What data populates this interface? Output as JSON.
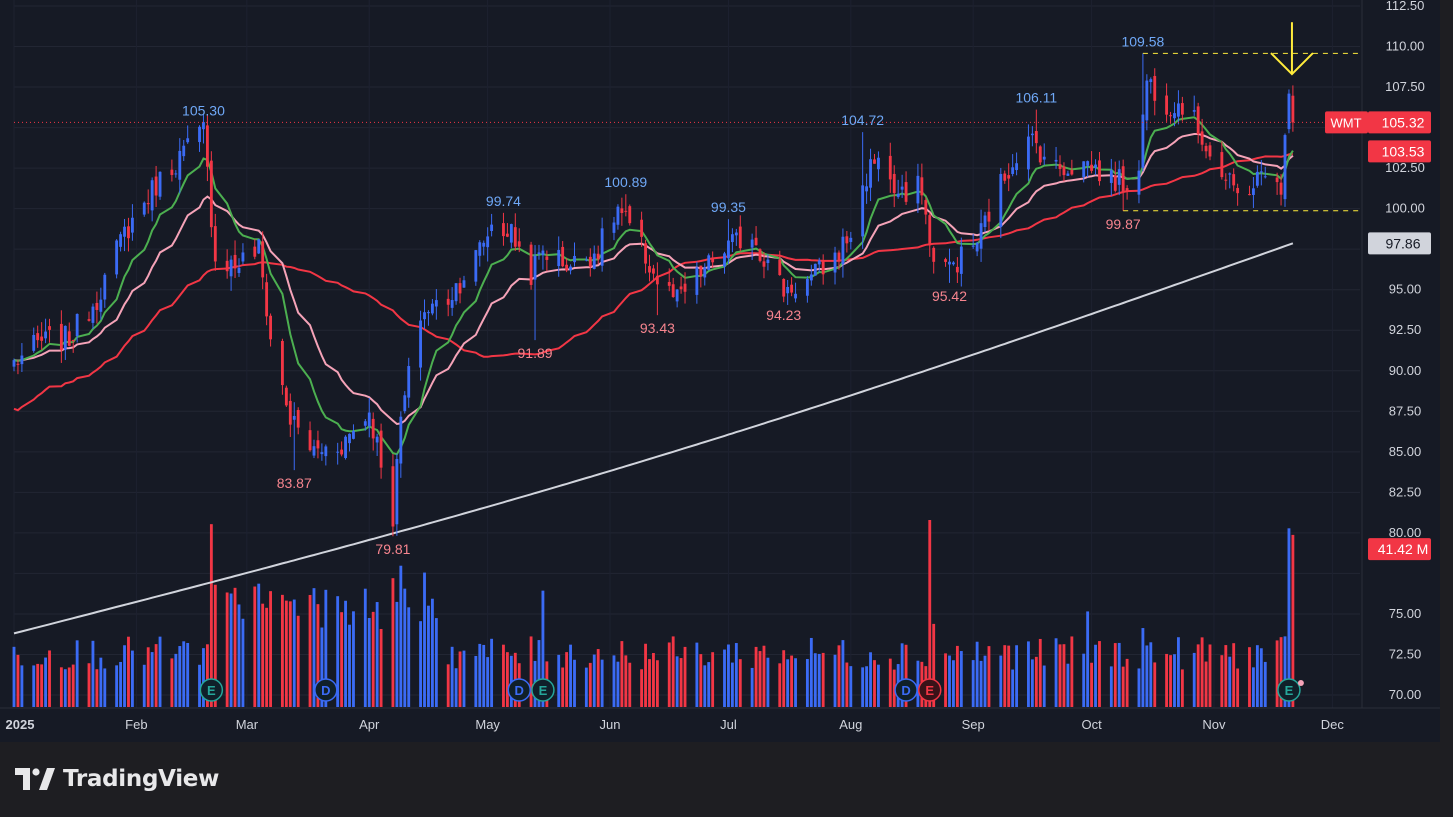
{
  "symbol": "WMT",
  "brand": {
    "name": "TradingView",
    "icon": "tradingview-logo-icon"
  },
  "colors": {
    "background": "#161a25",
    "up": "#3b6bf5",
    "down": "#f23645",
    "ema_fast": "#4caf50",
    "ema_mid": "#f5a3b8",
    "sma_50": "#f23645",
    "sma_200": "#d1d4dc",
    "arrow": "#ffeb3b",
    "dashed": "#ffeb3b",
    "text": "#d1d4dc"
  },
  "chart_data": {
    "type": "candlestick",
    "title": "",
    "ylim": [
      70,
      112.5
    ],
    "yticks": [
      70,
      72.5,
      75,
      77.5,
      80,
      82.5,
      85,
      87.5,
      90,
      92.5,
      95,
      97.5,
      100,
      102.5,
      105,
      107.5,
      110,
      112.5
    ],
    "ytick_labels": [
      "70.00",
      "72.50",
      "75.00",
      "",
      "80.00",
      "82.50",
      "85.00",
      "87.50",
      "90.00",
      "92.50",
      "95.00",
      "",
      "100.00",
      "102.50",
      "",
      "107.50",
      "110.00",
      "112.50"
    ],
    "xlim": [
      "2025-01-01",
      "2025-12-08"
    ],
    "xticks": [
      {
        "date": "2025-01-01",
        "label": "2025"
      },
      {
        "date": "2025-02-01",
        "label": "Feb"
      },
      {
        "date": "2025-03-01",
        "label": "Mar"
      },
      {
        "date": "2025-04-01",
        "label": "Apr"
      },
      {
        "date": "2025-05-01",
        "label": "May"
      },
      {
        "date": "2025-06-01",
        "label": "Jun"
      },
      {
        "date": "2025-07-01",
        "label": "Jul"
      },
      {
        "date": "2025-08-01",
        "label": "Aug"
      },
      {
        "date": "2025-09-01",
        "label": "Sep"
      },
      {
        "date": "2025-10-01",
        "label": "Oct"
      },
      {
        "date": "2025-11-01",
        "label": "Nov"
      },
      {
        "date": "2025-12-01",
        "label": "Dec"
      }
    ],
    "price_anchors": [
      [
        "2025-01-01",
        90.5
      ],
      [
        "2025-01-08",
        91.8
      ],
      [
        "2025-01-15",
        92.0
      ],
      [
        "2025-01-22",
        94.5
      ],
      [
        "2025-01-29",
        98.5
      ],
      [
        "2025-02-06",
        101.5
      ],
      [
        "2025-02-13",
        103.5
      ],
      [
        "2025-02-18",
        104.8
      ],
      [
        "2025-02-21",
        97.0
      ],
      [
        "2025-02-26",
        96.5
      ],
      [
        "2025-03-04",
        97.5
      ],
      [
        "2025-03-07",
        92.0
      ],
      [
        "2025-03-12",
        87.0
      ],
      [
        "2025-03-18",
        85.0
      ],
      [
        "2025-03-25",
        85.5
      ],
      [
        "2025-04-01",
        87.5
      ],
      [
        "2025-04-04",
        84.5
      ],
      [
        "2025-04-07",
        81.0
      ],
      [
        "2025-04-09",
        87.0
      ],
      [
        "2025-04-14",
        93.5
      ],
      [
        "2025-04-21",
        94.5
      ],
      [
        "2025-04-28",
        97.0
      ],
      [
        "2025-05-02",
        99.0
      ],
      [
        "2025-05-07",
        98.5
      ],
      [
        "2025-05-12",
        96.0
      ],
      [
        "2025-05-15",
        97.5
      ],
      [
        "2025-05-22",
        96.5
      ],
      [
        "2025-05-29",
        97.5
      ],
      [
        "2025-06-03",
        100.0
      ],
      [
        "2025-06-09",
        97.5
      ],
      [
        "2025-06-13",
        95.5
      ],
      [
        "2025-06-18",
        94.3
      ],
      [
        "2025-06-24",
        96.0
      ],
      [
        "2025-06-30",
        97.5
      ],
      [
        "2025-07-07",
        98.5
      ],
      [
        "2025-07-10",
        97.0
      ],
      [
        "2025-07-15",
        95.0
      ],
      [
        "2025-07-21",
        95.5
      ],
      [
        "2025-07-28",
        97.0
      ],
      [
        "2025-08-01",
        98.5
      ],
      [
        "2025-08-05",
        102.0
      ],
      [
        "2025-08-08",
        103.5
      ],
      [
        "2025-08-12",
        101.0
      ],
      [
        "2025-08-15",
        100.5
      ],
      [
        "2025-08-19",
        101.5
      ],
      [
        "2025-08-21",
        97.5
      ],
      [
        "2025-08-26",
        96.3
      ],
      [
        "2025-09-02",
        98.0
      ],
      [
        "2025-09-08",
        101.5
      ],
      [
        "2025-09-12",
        103.5
      ],
      [
        "2025-09-16",
        104.2
      ],
      [
        "2025-09-22",
        102.5
      ],
      [
        "2025-09-30",
        102.8
      ],
      [
        "2025-10-06",
        101.8
      ],
      [
        "2025-10-10",
        101.5
      ],
      [
        "2025-10-13",
        103.0
      ],
      [
        "2025-10-15",
        108.0
      ],
      [
        "2025-10-20",
        106.5
      ],
      [
        "2025-10-24",
        106.5
      ],
      [
        "2025-10-29",
        104.5
      ],
      [
        "2025-11-03",
        102.0
      ],
      [
        "2025-11-07",
        100.8
      ],
      [
        "2025-11-12",
        101.8
      ],
      [
        "2025-11-17",
        102.3
      ],
      [
        "2025-11-18",
        100.5
      ],
      [
        "2025-11-20",
        107.8
      ],
      [
        "2025-11-21",
        105.32
      ]
    ],
    "volume_scale_max_millions": 45,
    "last_volume_millions": 41.42,
    "price_labels": [
      {
        "text": "105.30",
        "date": "2025-02-18",
        "price": 105.3,
        "kind": "high"
      },
      {
        "text": "83.87",
        "date": "2025-03-13",
        "price": 83.87,
        "kind": "low"
      },
      {
        "text": "79.81",
        "date": "2025-04-07",
        "price": 79.81,
        "kind": "low"
      },
      {
        "text": "99.74",
        "date": "2025-05-05",
        "price": 99.74,
        "kind": "high"
      },
      {
        "text": "91.89",
        "date": "2025-05-13",
        "price": 91.89,
        "kind": "low"
      },
      {
        "text": "100.89",
        "date": "2025-06-05",
        "price": 100.89,
        "kind": "high"
      },
      {
        "text": "93.43",
        "date": "2025-06-13",
        "price": 93.43,
        "kind": "low"
      },
      {
        "text": "99.35",
        "date": "2025-07-01",
        "price": 99.35,
        "kind": "high"
      },
      {
        "text": "94.23",
        "date": "2025-07-15",
        "price": 94.23,
        "kind": "low"
      },
      {
        "text": "104.72",
        "date": "2025-08-04",
        "price": 104.72,
        "kind": "high"
      },
      {
        "text": "95.42",
        "date": "2025-08-26",
        "price": 95.42,
        "kind": "low"
      },
      {
        "text": "106.11",
        "date": "2025-09-17",
        "price": 106.11,
        "kind": "high"
      },
      {
        "text": "99.87",
        "date": "2025-10-09",
        "price": 99.87,
        "kind": "low"
      },
      {
        "text": "109.58",
        "date": "2025-10-14",
        "price": 109.58,
        "kind": "high"
      }
    ],
    "dashed_levels": [
      {
        "price": 109.58,
        "from": "2025-10-14",
        "to": "2025-12-08"
      },
      {
        "price": 99.87,
        "from": "2025-10-09",
        "to": "2025-12-08"
      }
    ],
    "axis_badges": [
      {
        "label": "WMT",
        "value": "105.32",
        "price": 105.32,
        "color": "#f23645"
      },
      {
        "value": "103.53",
        "price": 103.53,
        "color": "#f23645"
      },
      {
        "value": "97.86",
        "price": 97.86,
        "color": "#d1d4dc"
      },
      {
        "value": "41.42 M",
        "price": 79.0,
        "color": "#f23645"
      }
    ],
    "event_markers": [
      {
        "date": "2025-02-20",
        "letter": "E",
        "kind": "earnings"
      },
      {
        "date": "2025-03-21",
        "letter": "D",
        "kind": "dividend"
      },
      {
        "date": "2025-05-09",
        "letter": "D",
        "kind": "dividend"
      },
      {
        "date": "2025-05-15",
        "letter": "E",
        "kind": "earnings"
      },
      {
        "date": "2025-08-15",
        "letter": "D",
        "kind": "dividend"
      },
      {
        "date": "2025-08-21",
        "letter": "E",
        "kind": "earnings-negative"
      },
      {
        "date": "2025-11-20",
        "letter": "E",
        "kind": "earnings"
      }
    ],
    "annotations": [
      {
        "type": "arrow-down",
        "date": "2025-11-20",
        "price_top": 111.5,
        "price_tip": 108.3
      }
    ],
    "moving_averages": [
      {
        "kind": "ema",
        "period": 10,
        "color": "#4caf50"
      },
      {
        "kind": "ema",
        "period": 21,
        "color": "#f5a3b8"
      },
      {
        "kind": "sma",
        "period": 50,
        "color": "#f23645"
      },
      {
        "kind": "sma",
        "period": 200,
        "color": "#d1d4dc"
      }
    ],
    "grid": true,
    "legend": "none"
  }
}
